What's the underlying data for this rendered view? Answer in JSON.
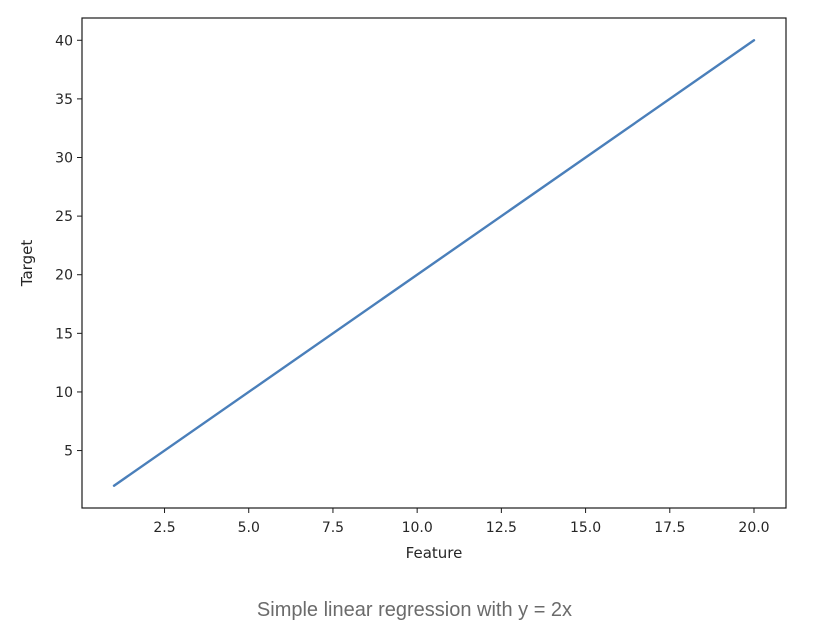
{
  "caption": "Simple linear regression with y = 2x",
  "chart_data": {
    "type": "line",
    "title": "",
    "xlabel": "Feature",
    "ylabel": "Target",
    "xlim": [
      0.05,
      20.95
    ],
    "ylim": [
      0.1,
      41.9
    ],
    "x_ticks": [
      2.5,
      5.0,
      7.5,
      10.0,
      12.5,
      15.0,
      17.5,
      20.0
    ],
    "x_tick_labels": [
      "2.5",
      "5.0",
      "7.5",
      "10.0",
      "12.5",
      "15.0",
      "17.5",
      "20.0"
    ],
    "y_ticks": [
      5,
      10,
      15,
      20,
      25,
      30,
      35,
      40
    ],
    "y_tick_labels": [
      "5",
      "10",
      "15",
      "20",
      "25",
      "30",
      "35",
      "40"
    ],
    "grid": false,
    "series": [
      {
        "color": "#4a7fba",
        "x": [
          1,
          20
        ],
        "y": [
          2,
          40
        ]
      }
    ]
  }
}
